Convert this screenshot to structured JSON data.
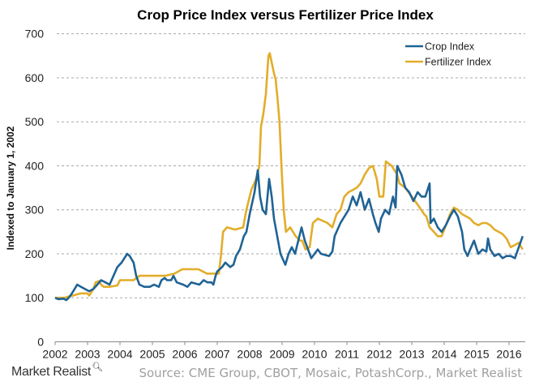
{
  "chart_data": {
    "type": "line",
    "title": "Crop Price Index versus Fertilizer Price Index",
    "xlabel": "",
    "ylabel": "Indexed to January 1, 2002",
    "xlim": [
      2002,
      2016.5
    ],
    "ylim": [
      0,
      700
    ],
    "yticks": [
      0,
      100,
      200,
      300,
      400,
      500,
      600,
      700
    ],
    "xticks": [
      2002,
      2003,
      2004,
      2005,
      2006,
      2007,
      2008,
      2009,
      2010,
      2011,
      2012,
      2013,
      2014,
      2015,
      2016
    ],
    "grid": true,
    "legend_position": "top-right",
    "series": [
      {
        "name": "Crop Index",
        "color": "#1f6395",
        "points": [
          [
            2002.0,
            100
          ],
          [
            2002.1,
            97
          ],
          [
            2002.25,
            98
          ],
          [
            2002.35,
            95
          ],
          [
            2002.42,
            100
          ],
          [
            2002.5,
            108
          ],
          [
            2002.6,
            120
          ],
          [
            2002.68,
            130
          ],
          [
            2002.8,
            125
          ],
          [
            2002.92,
            120
          ],
          [
            2003.05,
            115
          ],
          [
            2003.18,
            120
          ],
          [
            2003.3,
            130
          ],
          [
            2003.42,
            140
          ],
          [
            2003.55,
            135
          ],
          [
            2003.68,
            130
          ],
          [
            2003.8,
            150
          ],
          [
            2003.92,
            170
          ],
          [
            2004.05,
            180
          ],
          [
            2004.18,
            195
          ],
          [
            2004.22,
            200
          ],
          [
            2004.3,
            195
          ],
          [
            2004.42,
            180
          ],
          [
            2004.5,
            150
          ],
          [
            2004.6,
            130
          ],
          [
            2004.75,
            125
          ],
          [
            2004.92,
            125
          ],
          [
            2005.05,
            130
          ],
          [
            2005.2,
            125
          ],
          [
            2005.28,
            140
          ],
          [
            2005.38,
            145
          ],
          [
            2005.45,
            140
          ],
          [
            2005.58,
            140
          ],
          [
            2005.65,
            150
          ],
          [
            2005.75,
            135
          ],
          [
            2005.95,
            130
          ],
          [
            2006.08,
            125
          ],
          [
            2006.2,
            135
          ],
          [
            2006.45,
            130
          ],
          [
            2006.58,
            140
          ],
          [
            2006.7,
            135
          ],
          [
            2006.82,
            135
          ],
          [
            2006.88,
            130
          ],
          [
            2006.95,
            150
          ],
          [
            2007.0,
            160
          ],
          [
            2007.15,
            170
          ],
          [
            2007.25,
            180
          ],
          [
            2007.4,
            170
          ],
          [
            2007.5,
            175
          ],
          [
            2007.58,
            195
          ],
          [
            2007.7,
            210
          ],
          [
            2007.82,
            240
          ],
          [
            2007.9,
            250
          ],
          [
            2008.0,
            290
          ],
          [
            2008.15,
            340
          ],
          [
            2008.25,
            390
          ],
          [
            2008.32,
            330
          ],
          [
            2008.4,
            300
          ],
          [
            2008.5,
            290
          ],
          [
            2008.6,
            370
          ],
          [
            2008.68,
            330
          ],
          [
            2008.75,
            280
          ],
          [
            2008.85,
            240
          ],
          [
            2008.95,
            200
          ],
          [
            2009.1,
            175
          ],
          [
            2009.2,
            200
          ],
          [
            2009.3,
            215
          ],
          [
            2009.4,
            200
          ],
          [
            2009.5,
            230
          ],
          [
            2009.6,
            260
          ],
          [
            2009.7,
            230
          ],
          [
            2009.8,
            210
          ],
          [
            2009.9,
            190
          ],
          [
            2010.1,
            210
          ],
          [
            2010.2,
            200
          ],
          [
            2010.45,
            195
          ],
          [
            2010.55,
            205
          ],
          [
            2010.62,
            240
          ],
          [
            2010.8,
            270
          ],
          [
            2011.05,
            300
          ],
          [
            2011.18,
            330
          ],
          [
            2011.3,
            310
          ],
          [
            2011.42,
            340
          ],
          [
            2011.55,
            300
          ],
          [
            2011.68,
            325
          ],
          [
            2011.8,
            290
          ],
          [
            2011.88,
            270
          ],
          [
            2011.98,
            250
          ],
          [
            2012.05,
            280
          ],
          [
            2012.18,
            300
          ],
          [
            2012.3,
            290
          ],
          [
            2012.42,
            330
          ],
          [
            2012.5,
            305
          ],
          [
            2012.55,
            400
          ],
          [
            2012.68,
            380
          ],
          [
            2012.8,
            350
          ],
          [
            2012.92,
            340
          ],
          [
            2013.05,
            320
          ],
          [
            2013.18,
            340
          ],
          [
            2013.3,
            330
          ],
          [
            2013.42,
            330
          ],
          [
            2013.55,
            360
          ],
          [
            2013.58,
            270
          ],
          [
            2013.68,
            280
          ],
          [
            2013.8,
            260
          ],
          [
            2013.92,
            250
          ],
          [
            2014.05,
            265
          ],
          [
            2014.18,
            285
          ],
          [
            2014.3,
            300
          ],
          [
            2014.42,
            285
          ],
          [
            2014.55,
            250
          ],
          [
            2014.62,
            210
          ],
          [
            2014.72,
            195
          ],
          [
            2014.8,
            210
          ],
          [
            2014.92,
            230
          ],
          [
            2015.05,
            200
          ],
          [
            2015.18,
            210
          ],
          [
            2015.3,
            205
          ],
          [
            2015.35,
            235
          ],
          [
            2015.42,
            210
          ],
          [
            2015.55,
            195
          ],
          [
            2015.68,
            200
          ],
          [
            2015.8,
            190
          ],
          [
            2015.92,
            195
          ],
          [
            2016.05,
            195
          ],
          [
            2016.18,
            190
          ],
          [
            2016.3,
            215
          ],
          [
            2016.42,
            240
          ]
        ]
      },
      {
        "name": "Fertilizer Index",
        "color": "#e2ad2a",
        "points": [
          [
            2002.0,
            100
          ],
          [
            2002.3,
            100
          ],
          [
            2002.42,
            103
          ],
          [
            2002.55,
            105
          ],
          [
            2002.68,
            108
          ],
          [
            2002.8,
            110
          ],
          [
            2003.0,
            110
          ],
          [
            2003.05,
            105
          ],
          [
            2003.18,
            120
          ],
          [
            2003.25,
            135
          ],
          [
            2003.35,
            138
          ],
          [
            2003.42,
            130
          ],
          [
            2003.5,
            125
          ],
          [
            2003.68,
            125
          ],
          [
            2003.92,
            128
          ],
          [
            2004.0,
            140
          ],
          [
            2004.18,
            140
          ],
          [
            2004.42,
            140
          ],
          [
            2004.6,
            150
          ],
          [
            2004.8,
            150
          ],
          [
            2005.0,
            150
          ],
          [
            2005.2,
            150
          ],
          [
            2005.4,
            150
          ],
          [
            2005.68,
            155
          ],
          [
            2005.8,
            160
          ],
          [
            2005.92,
            165
          ],
          [
            2006.42,
            165
          ],
          [
            2006.55,
            160
          ],
          [
            2006.68,
            155
          ],
          [
            2006.8,
            155
          ],
          [
            2007.05,
            155
          ],
          [
            2007.12,
            200
          ],
          [
            2007.18,
            250
          ],
          [
            2007.3,
            260
          ],
          [
            2007.55,
            255
          ],
          [
            2007.8,
            260
          ],
          [
            2007.9,
            300
          ],
          [
            2008.05,
            345
          ],
          [
            2008.2,
            370
          ],
          [
            2008.3,
            400
          ],
          [
            2008.35,
            490
          ],
          [
            2008.42,
            517
          ],
          [
            2008.5,
            563
          ],
          [
            2008.55,
            619
          ],
          [
            2008.58,
            650
          ],
          [
            2008.62,
            656
          ],
          [
            2008.75,
            610
          ],
          [
            2008.8,
            597
          ],
          [
            2008.85,
            560
          ],
          [
            2008.92,
            500
          ],
          [
            2008.98,
            400
          ],
          [
            2009.05,
            300
          ],
          [
            2009.12,
            250
          ],
          [
            2009.25,
            260
          ],
          [
            2009.42,
            240
          ],
          [
            2009.55,
            230
          ],
          [
            2009.62,
            230
          ],
          [
            2009.72,
            210
          ],
          [
            2009.85,
            215
          ],
          [
            2009.95,
            270
          ],
          [
            2010.1,
            280
          ],
          [
            2010.4,
            270
          ],
          [
            2010.55,
            260
          ],
          [
            2010.68,
            290
          ],
          [
            2010.8,
            300
          ],
          [
            2010.92,
            330
          ],
          [
            2011.05,
            340
          ],
          [
            2011.3,
            350
          ],
          [
            2011.42,
            360
          ],
          [
            2011.55,
            380
          ],
          [
            2011.68,
            395
          ],
          [
            2011.8,
            400
          ],
          [
            2011.92,
            370
          ],
          [
            2012.0,
            330
          ],
          [
            2012.12,
            330
          ],
          [
            2012.2,
            410
          ],
          [
            2012.38,
            400
          ],
          [
            2012.55,
            380
          ],
          [
            2012.62,
            360
          ],
          [
            2012.8,
            350
          ],
          [
            2013.05,
            325
          ],
          [
            2013.2,
            310
          ],
          [
            2013.38,
            290
          ],
          [
            2013.45,
            285
          ],
          [
            2013.55,
            260
          ],
          [
            2013.68,
            250
          ],
          [
            2013.8,
            240
          ],
          [
            2013.92,
            240
          ],
          [
            2014.0,
            255
          ],
          [
            2014.18,
            290
          ],
          [
            2014.3,
            305
          ],
          [
            2014.42,
            300
          ],
          [
            2014.55,
            290
          ],
          [
            2014.68,
            285
          ],
          [
            2014.8,
            280
          ],
          [
            2014.92,
            270
          ],
          [
            2015.05,
            265
          ],
          [
            2015.18,
            270
          ],
          [
            2015.3,
            270
          ],
          [
            2015.42,
            265
          ],
          [
            2015.55,
            255
          ],
          [
            2015.68,
            250
          ],
          [
            2015.8,
            245
          ],
          [
            2015.92,
            235
          ],
          [
            2016.05,
            215
          ],
          [
            2016.18,
            220
          ],
          [
            2016.3,
            225
          ],
          [
            2016.42,
            210
          ]
        ]
      }
    ]
  },
  "footer": {
    "brand": "Market Realist",
    "brand_icon": "magnifier-icon",
    "source": "Source: CME Group, CBOT, Mosaic, PotashCorp., Market Realist"
  }
}
